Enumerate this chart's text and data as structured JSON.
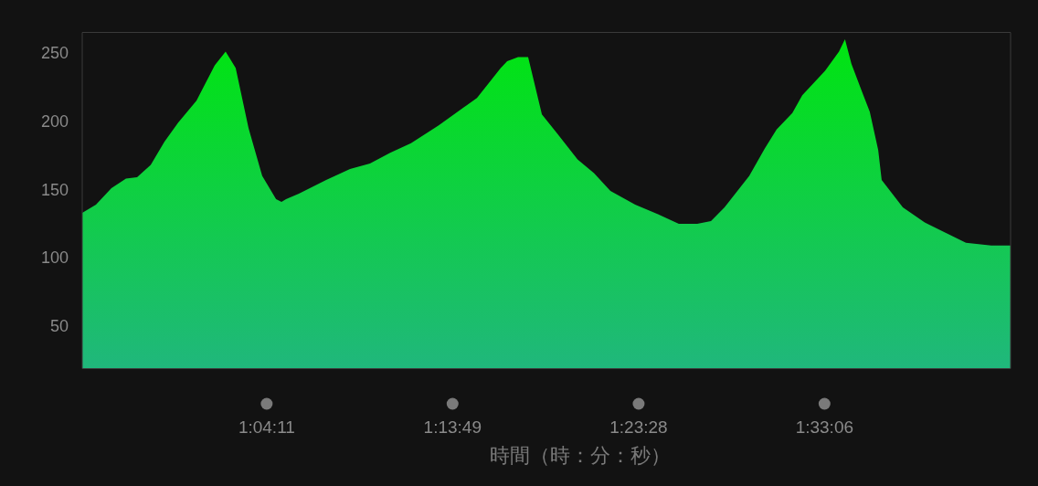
{
  "chart_data": {
    "type": "area",
    "xlabel": "時間（時：分：秒）",
    "color": "#00e510",
    "x": [
      0.9103,
      0.9222,
      0.9355,
      0.9481,
      0.9577,
      0.9695,
      0.9813,
      0.9932,
      1.009,
      1.0248,
      1.0342,
      1.0429,
      1.054,
      1.0658,
      1.0778,
      1.0825,
      1.0864,
      1.0975,
      1.1211,
      1.1417,
      1.1589,
      1.1764,
      1.1944,
      1.2183,
      1.2514,
      1.2719,
      1.2775,
      1.2869,
      1.2956,
      1.3075,
      1.3208,
      1.3383,
      1.3525,
      1.3667,
      1.3881,
      1.4078,
      1.4258,
      1.4417,
      1.4536,
      1.4653,
      1.4867,
      1.5,
      1.5103,
      1.5239,
      1.5325,
      1.5522,
      1.5642,
      1.5694,
      1.575,
      1.5839,
      1.5908,
      1.5981,
      1.6011,
      1.6194,
      1.6383,
      1.6739,
      1.6958,
      1.7125
    ],
    "values": [
      133,
      139,
      151,
      158,
      159,
      168,
      185,
      199,
      215,
      241,
      251,
      239,
      195,
      160,
      143,
      141,
      143,
      147,
      157,
      165,
      169,
      177,
      184,
      197,
      217,
      239,
      244,
      247,
      247,
      205,
      191,
      172,
      162,
      149,
      139,
      132,
      125,
      125,
      127,
      137,
      160,
      180,
      194,
      206,
      219,
      237,
      251,
      260,
      242,
      222,
      207,
      179,
      157,
      137,
      126,
      111,
      109,
      109
    ],
    "xlim": [
      0.9103,
      1.7125
    ],
    "ylim": [
      19,
      265
    ],
    "xticks": [
      {
        "value": 1.0697,
        "label": "1:04:11"
      },
      {
        "value": 1.2303,
        "label": "1:13:49"
      },
      {
        "value": 1.3911,
        "label": "1:23:28"
      },
      {
        "value": 1.5517,
        "label": "1:33:06"
      }
    ],
    "yticks": [
      50,
      100,
      150,
      200,
      250
    ]
  }
}
